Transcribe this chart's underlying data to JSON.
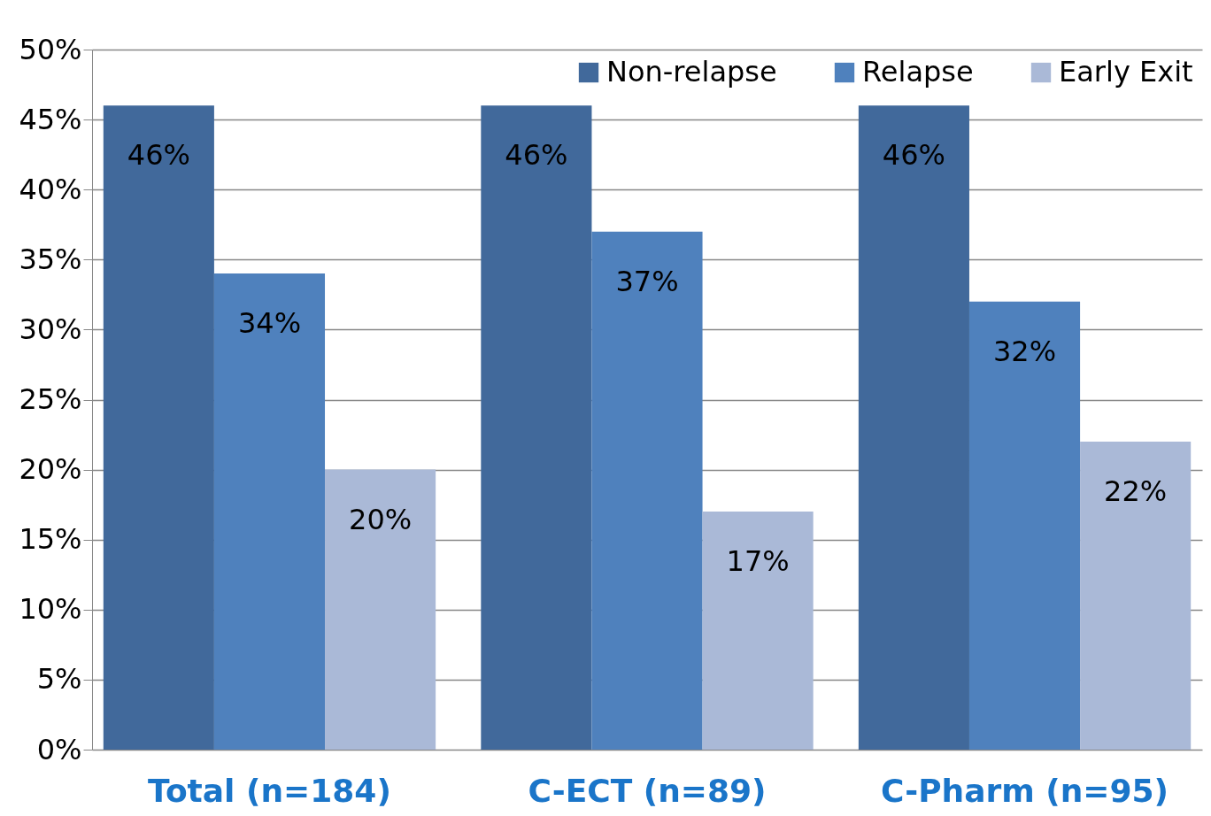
{
  "chart_data": {
    "type": "bar",
    "categories": [
      "Total (n=184)",
      "C-ECT (n=89)",
      "C-Pharm (n=95)"
    ],
    "series": [
      {
        "name": "Non-relapse",
        "color": "#41699b",
        "values": [
          46,
          46,
          46
        ],
        "value_labels": [
          "46%",
          "46%",
          "46%"
        ]
      },
      {
        "name": "Relapse",
        "color": "#4f81bd",
        "values": [
          34,
          37,
          32
        ],
        "value_labels": [
          "34%",
          "37%",
          "32%"
        ]
      },
      {
        "name": "Early Exit",
        "color": "#aab9d7",
        "values": [
          20,
          17,
          22
        ],
        "value_labels": [
          "20%",
          "17%",
          "22%"
        ]
      }
    ],
    "ylim": [
      0,
      50
    ],
    "yticks": [
      {
        "value": 0,
        "label": "0%"
      },
      {
        "value": 5,
        "label": "5%"
      },
      {
        "value": 10,
        "label": "10%"
      },
      {
        "value": 15,
        "label": "15%"
      },
      {
        "value": 20,
        "label": "20%"
      },
      {
        "value": 25,
        "label": "25%"
      },
      {
        "value": 30,
        "label": "30%"
      },
      {
        "value": 35,
        "label": "35%"
      },
      {
        "value": 40,
        "label": "40%"
      },
      {
        "value": 45,
        "label": "45%"
      },
      {
        "value": 50,
        "label": "50%"
      }
    ],
    "grid": "y",
    "legend": "top right"
  }
}
